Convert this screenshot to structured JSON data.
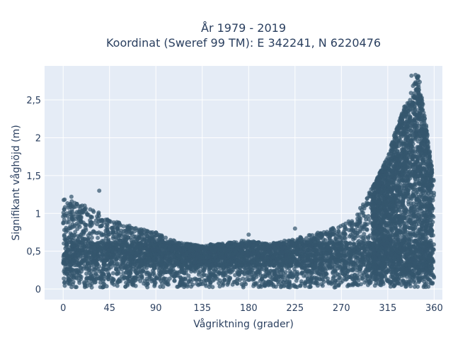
{
  "chart_data": {
    "type": "scatter",
    "title_lines": [
      "År 1979 - 2019",
      "Koordinat (Sweref 99 TM): E 342241, N 6220476"
    ],
    "xlabel": "Vågriktning (grader)",
    "ylabel": "Signifikant våghöjd (m)",
    "xlim": [
      -18,
      368
    ],
    "ylim": [
      -0.14,
      2.95
    ],
    "x_ticks": [
      0,
      45,
      90,
      135,
      180,
      225,
      270,
      315,
      360
    ],
    "x_tick_labels": [
      "0",
      "45",
      "90",
      "135",
      "180",
      "225",
      "270",
      "315",
      "360"
    ],
    "y_ticks": [
      0,
      0.5,
      1,
      1.5,
      2,
      2.5
    ],
    "y_tick_labels": [
      "0",
      "0,5",
      "1",
      "1,5",
      "2",
      "2,5"
    ],
    "grid": true,
    "point_color": "#34566d",
    "plot_background": "#e5ecf6",
    "series": [
      {
        "approx_upper_envelope": {
          "x": [
            0,
            15,
            30,
            45,
            60,
            75,
            90,
            105,
            120,
            135,
            150,
            165,
            180,
            195,
            210,
            225,
            240,
            255,
            270,
            285,
            300,
            315,
            325,
            335,
            345,
            355,
            360
          ],
          "y": [
            1.2,
            1.15,
            1.05,
            0.95,
            0.85,
            0.8,
            0.75,
            0.65,
            0.6,
            0.58,
            0.6,
            0.62,
            0.65,
            0.6,
            0.62,
            0.68,
            0.72,
            0.78,
            0.85,
            1.0,
            1.35,
            1.75,
            2.2,
            2.55,
            2.85,
            1.9,
            1.4
          ]
        },
        "outliers": [
          {
            "x": 35,
            "y": 1.3
          },
          {
            "x": 8,
            "y": 1.22
          },
          {
            "x": 338,
            "y": 2.82
          },
          {
            "x": 342,
            "y": 2.83
          },
          {
            "x": 225,
            "y": 0.8
          },
          {
            "x": 180,
            "y": 0.72
          }
        ]
      }
    ]
  }
}
